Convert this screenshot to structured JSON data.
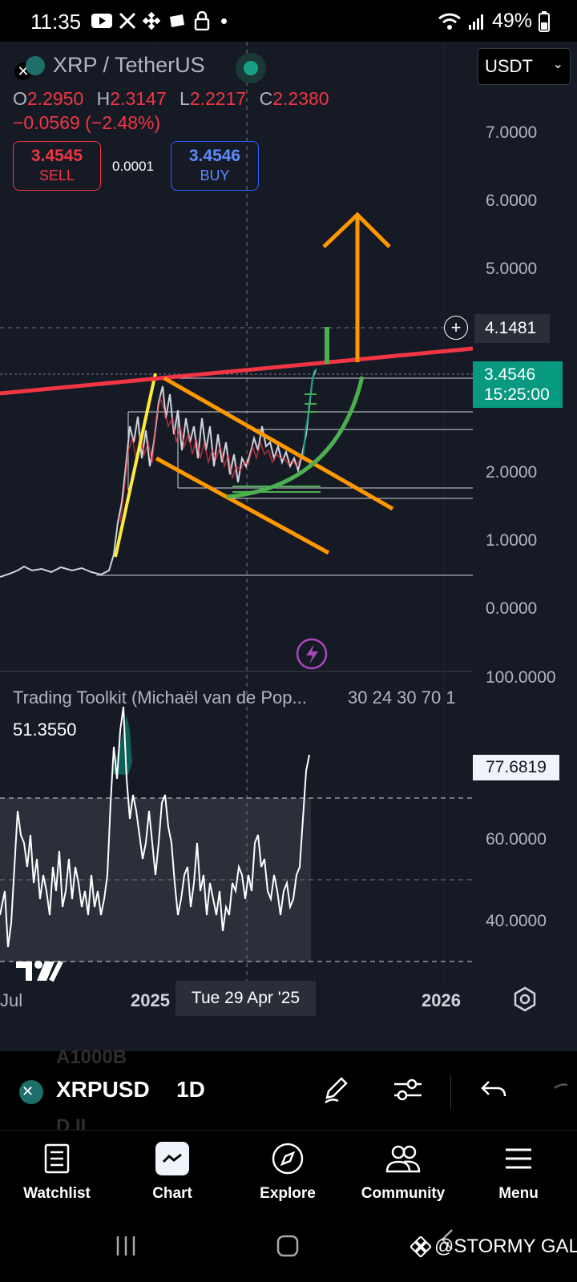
{
  "status": {
    "time": "11:35",
    "battery": "49%"
  },
  "header": {
    "symbol": "XRP / TetherUS",
    "currency": "USDT"
  },
  "ohlc": {
    "o_label": "O",
    "o": "2.2950",
    "h_label": "H",
    "h": "2.3147",
    "l_label": "L",
    "l": "2.2217",
    "c_label": "C",
    "c": "2.2380",
    "change": "−0.0569 (−2.48%)"
  },
  "trade": {
    "sell_price": "3.4545",
    "sell_label": "SELL",
    "spread": "0.0001",
    "buy_price": "3.4546",
    "buy_label": "BUY"
  },
  "price_axis": {
    "labels": [
      "7.0000",
      "6.0000",
      "5.0000",
      "2.0000",
      "1.0000",
      "0.0000"
    ],
    "crosshair_price": "4.1481",
    "last_price": "3.4546",
    "countdown": "15:25:00"
  },
  "indicator": {
    "title": "Trading Toolkit (Michaël van de Pop...",
    "params": "30 24 30 70 1",
    "value": "51.3550",
    "current": "77.6819",
    "axis_labels": [
      "100.0000",
      "60.0000",
      "40.0000"
    ]
  },
  "time_axis": {
    "labels": [
      "Jul",
      "2025",
      "2026"
    ],
    "crosshair_date": "Tue 29 Apr '25"
  },
  "toolbar": {
    "symbol": "XRPUSD",
    "interval": "1D"
  },
  "nav": {
    "items": [
      {
        "label": "Watchlist",
        "icon": "watchlist-icon"
      },
      {
        "label": "Chart",
        "icon": "chart-icon"
      },
      {
        "label": "Explore",
        "icon": "compass-icon"
      },
      {
        "label": "Community",
        "icon": "community-icon"
      },
      {
        "label": "Menu",
        "icon": "menu-icon"
      }
    ]
  },
  "watermark": "@STORMY GAL",
  "colors": {
    "background": "#161a25",
    "up": "#089981",
    "down": "#f23645",
    "accent_blue": "#2962ff"
  }
}
